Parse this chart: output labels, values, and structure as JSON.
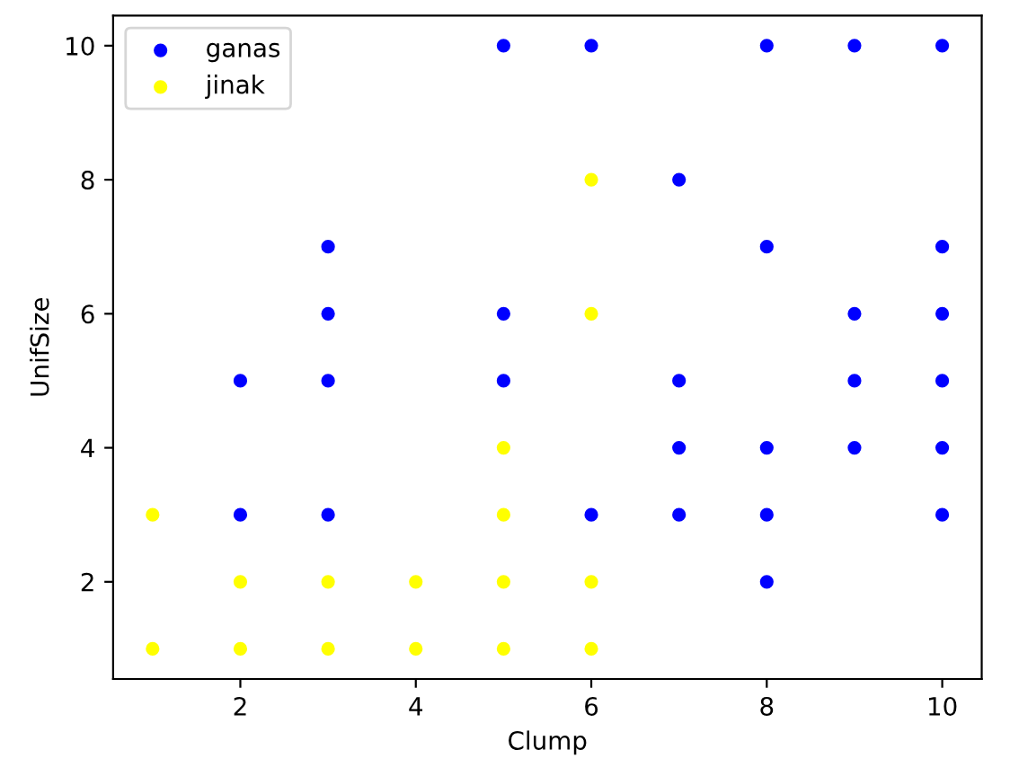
{
  "chart_data": {
    "type": "scatter",
    "xlabel": "Clump",
    "ylabel": "UnifSize",
    "xlim": [
      0.55,
      10.45
    ],
    "ylim": [
      0.55,
      10.45
    ],
    "xticks": [
      2,
      4,
      6,
      8,
      10
    ],
    "yticks": [
      2,
      4,
      6,
      8,
      10
    ],
    "legend": "top left",
    "grid": false,
    "marker": "circle",
    "series": [
      {
        "name": "ganas",
        "color": "#0000ff",
        "x": [
          2,
          2,
          3,
          3,
          3,
          3,
          5,
          5,
          5,
          6,
          6,
          7,
          7,
          7,
          7,
          8,
          8,
          8,
          8,
          8,
          9,
          9,
          9,
          9,
          10,
          10,
          10,
          10,
          10,
          10
        ],
        "values": [
          5,
          3,
          7,
          6,
          5,
          3,
          10,
          6,
          5,
          10,
          3,
          8,
          5,
          4,
          3,
          10,
          7,
          4,
          3,
          2,
          10,
          6,
          5,
          4,
          10,
          7,
          6,
          5,
          4,
          3
        ]
      },
      {
        "name": "jinak",
        "color": "#ffff00",
        "x": [
          1,
          1,
          2,
          2,
          3,
          3,
          4,
          4,
          5,
          5,
          5,
          5,
          6,
          6,
          6,
          6
        ],
        "values": [
          3,
          1,
          2,
          1,
          2,
          1,
          2,
          1,
          4,
          3,
          2,
          1,
          8,
          6,
          2,
          1
        ]
      }
    ]
  }
}
